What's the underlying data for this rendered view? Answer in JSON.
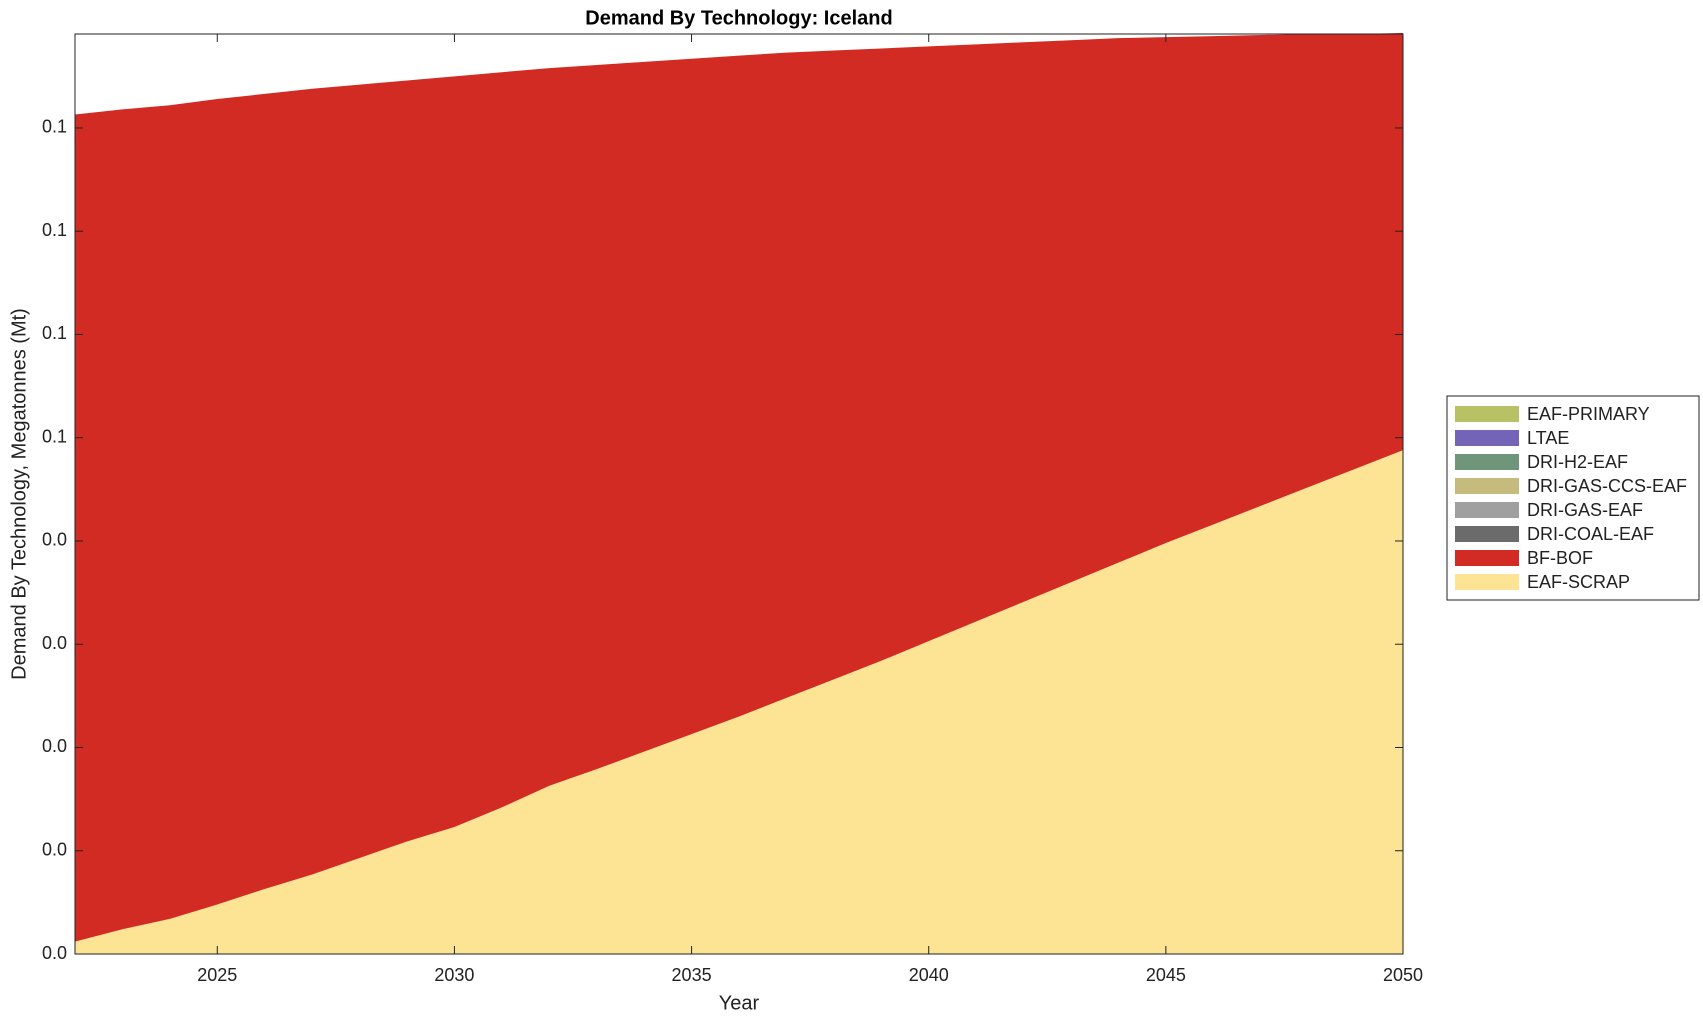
{
  "chart_data": {
    "type": "stacked-area",
    "title": "Demand By Technology: Iceland",
    "xlabel": "Year",
    "ylabel": "Demand By Technology, Megatonnes (Mt)",
    "x": [
      2022,
      2023,
      2024,
      2025,
      2026,
      2027,
      2028,
      2029,
      2030,
      2031,
      2032,
      2033,
      2034,
      2035,
      2036,
      2037,
      2038,
      2039,
      2040,
      2041,
      2042,
      2043,
      2044,
      2045,
      2046,
      2047,
      2048,
      2049,
      2050
    ],
    "xlim": [
      2022,
      2050
    ],
    "xticks": [
      2025,
      2030,
      2035,
      2040,
      2045,
      2050
    ],
    "ylim": [
      0,
      0.0891
    ],
    "yticks": [
      {
        "value": 0,
        "label": "0.0"
      },
      {
        "value": 0.01,
        "label": "0.0"
      },
      {
        "value": 0.02,
        "label": "0.0"
      },
      {
        "value": 0.03,
        "label": "0.0"
      },
      {
        "value": 0.04,
        "label": "0.0"
      },
      {
        "value": 0.05,
        "label": "0.1"
      },
      {
        "value": 0.06,
        "label": "0.1"
      },
      {
        "value": 0.07,
        "label": "0.1"
      },
      {
        "value": 0.08,
        "label": "0.1"
      }
    ],
    "legend_position": "right",
    "series": [
      {
        "name": "EAF-SCRAP",
        "color": "#fde394",
        "values": [
          0.0012,
          0.0024,
          0.0034,
          0.0048,
          0.0063,
          0.0077,
          0.0093,
          0.0109,
          0.0123,
          0.0142,
          0.0163,
          0.0179,
          0.0196,
          0.0213,
          0.023,
          0.0248,
          0.0266,
          0.0284,
          0.0303,
          0.0322,
          0.0341,
          0.036,
          0.0379,
          0.0398,
          0.0416,
          0.0434,
          0.0452,
          0.047,
          0.0488
        ]
      },
      {
        "name": "BF-BOF",
        "color": "#d22b24",
        "values": [
          0.0801,
          0.0794,
          0.0788,
          0.078,
          0.077,
          0.0761,
          0.0749,
          0.0737,
          0.0727,
          0.0712,
          0.0695,
          0.0682,
          0.0668,
          0.0654,
          0.064,
          0.0625,
          0.0609,
          0.0593,
          0.0576,
          0.0559,
          0.0542,
          0.0525,
          0.0508,
          0.049,
          0.0473,
          0.0456,
          0.0439,
          0.0421,
          0.0404
        ]
      },
      {
        "name": "DRI-COAL-EAF",
        "color": "#6b6b6b",
        "values": [
          0,
          0,
          0,
          0,
          0,
          0,
          0,
          0,
          0,
          0,
          0,
          0,
          0,
          0,
          0,
          0,
          0,
          0,
          0,
          0,
          0,
          0,
          0,
          0,
          0,
          0,
          0,
          0,
          0
        ]
      },
      {
        "name": "DRI-GAS-EAF",
        "color": "#a0a0a0",
        "values": [
          0,
          0,
          0,
          0,
          0,
          0,
          0,
          0,
          0,
          0,
          0,
          0,
          0,
          0,
          0,
          0,
          0,
          0,
          0,
          0,
          0,
          0,
          0,
          0,
          0,
          0,
          0,
          0,
          0
        ]
      },
      {
        "name": "DRI-GAS-CCS-EAF",
        "color": "#c4bb7c",
        "values": [
          0,
          0,
          0,
          0,
          0,
          0,
          0,
          0,
          0,
          0,
          0,
          0,
          0,
          0,
          0,
          0,
          0,
          0,
          0,
          0,
          0,
          0,
          0,
          0,
          0,
          0,
          0,
          0,
          0
        ]
      },
      {
        "name": "DRI-H2-EAF",
        "color": "#6f957a",
        "values": [
          0,
          0,
          0,
          0,
          0,
          0,
          0,
          0,
          0,
          0,
          0,
          0,
          0,
          0,
          0,
          0,
          0,
          0,
          0,
          0,
          0,
          0,
          0,
          0,
          0,
          0,
          0,
          0,
          0
        ]
      },
      {
        "name": "LTAE",
        "color": "#7464b8",
        "values": [
          0,
          0,
          0,
          0,
          0,
          0,
          0,
          0,
          0,
          0,
          0,
          0,
          0,
          0,
          0,
          0,
          0,
          0,
          0,
          0,
          0,
          0,
          0,
          0,
          0,
          0,
          0,
          0,
          0
        ]
      },
      {
        "name": "EAF-PRIMARY",
        "color": "#b8c264",
        "values": [
          0,
          0,
          0,
          0,
          0,
          0,
          0,
          0,
          0,
          0,
          0,
          0,
          0,
          0,
          0,
          0,
          0,
          0,
          0,
          0,
          0,
          0,
          0,
          0,
          0,
          0,
          0,
          0,
          0
        ]
      }
    ]
  }
}
